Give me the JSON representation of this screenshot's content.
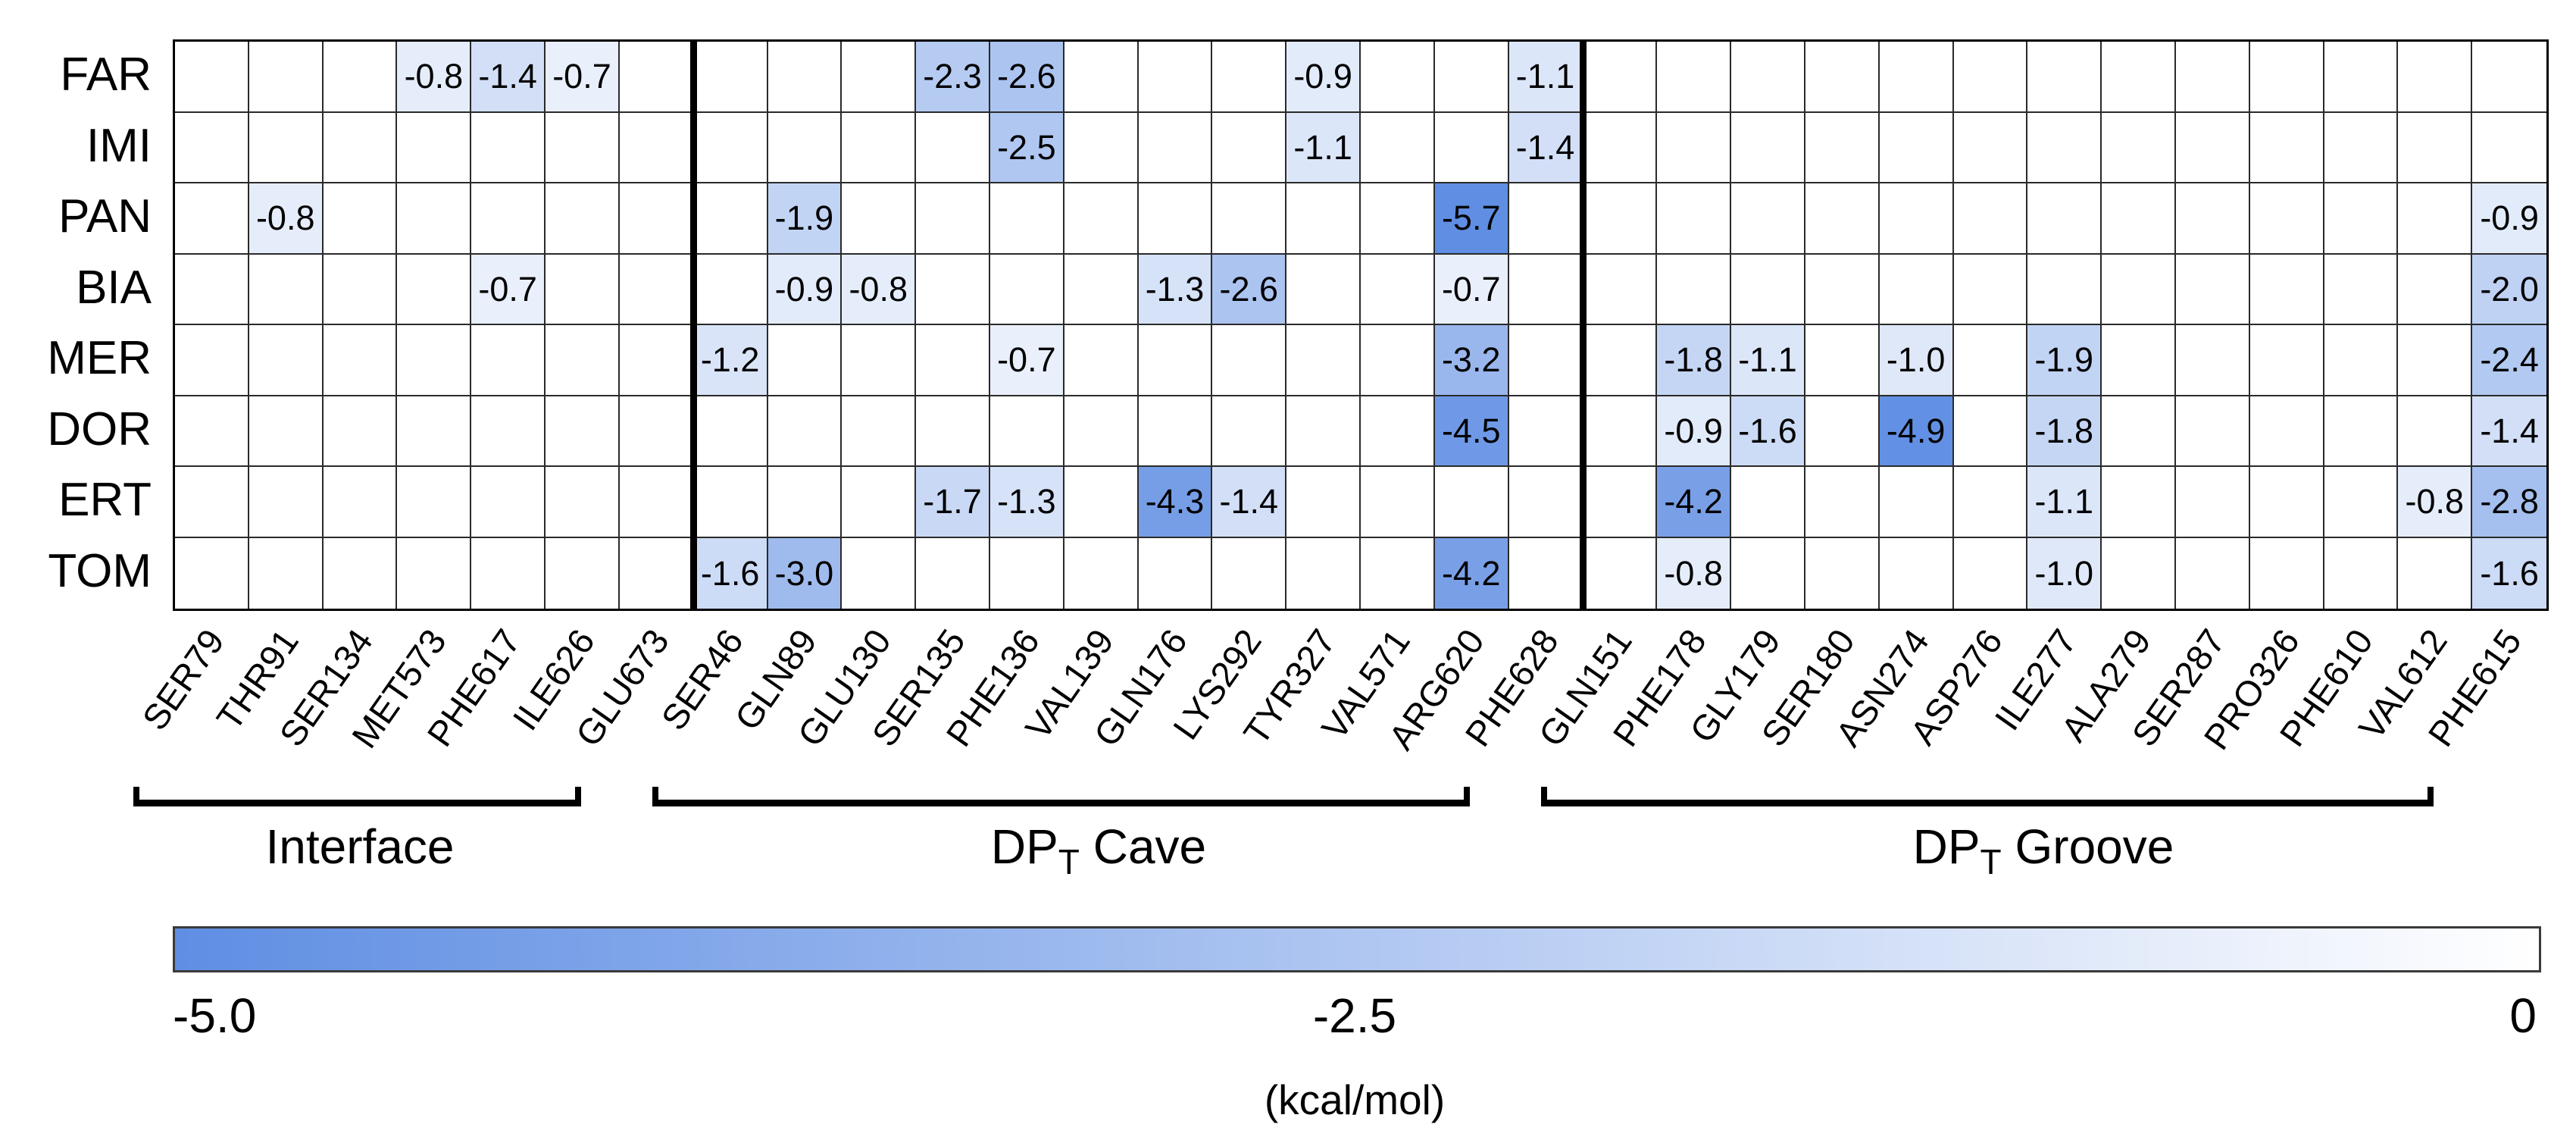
{
  "chart_data": {
    "type": "heatmap",
    "title": "",
    "rows": [
      "FAR",
      "IMI",
      "PAN",
      "BIA",
      "MER",
      "DOR",
      "ERT",
      "TOM"
    ],
    "columns": [
      "SER79",
      "THR91",
      "SER134",
      "MET573",
      "PHE617",
      "ILE626",
      "GLU673",
      "SER46",
      "GLN89",
      "GLU130",
      "SER135",
      "PHE136",
      "VAL139",
      "GLN176",
      "LYS292",
      "TYR327",
      "VAL571",
      "ARG620",
      "PHE628",
      "GLN151",
      "PHE178",
      "GLY179",
      "SER180",
      "ASN274",
      "ASP276",
      "ILE277",
      "ALA279",
      "SER287",
      "PRO326",
      "PHE610",
      "VAL612",
      "PHE615"
    ],
    "groups": [
      {
        "prefix": "Interface",
        "sub": "",
        "suffix": "",
        "full_label": "Interface",
        "first_column": "SER79",
        "last_column": "GLU673",
        "column_count": 7
      },
      {
        "prefix": "DP",
        "sub": "T",
        "suffix": " Cave",
        "full_label": "DPT Cave",
        "first_column": "SER46",
        "last_column": "PHE628",
        "column_count": 12
      },
      {
        "prefix": "DP",
        "sub": "T",
        "suffix": " Groove",
        "full_label": "DPT Groove",
        "first_column": "GLN151",
        "last_column": "PHE615",
        "column_count": 13
      }
    ],
    "values": [
      {
        "row": "FAR",
        "column": "MET573",
        "value": -0.8
      },
      {
        "row": "FAR",
        "column": "PHE617",
        "value": -1.4
      },
      {
        "row": "FAR",
        "column": "ILE626",
        "value": -0.7
      },
      {
        "row": "FAR",
        "column": "SER135",
        "value": -2.3
      },
      {
        "row": "FAR",
        "column": "PHE136",
        "value": -2.6
      },
      {
        "row": "FAR",
        "column": "TYR327",
        "value": -0.9
      },
      {
        "row": "FAR",
        "column": "PHE628",
        "value": -1.1
      },
      {
        "row": "IMI",
        "column": "PHE136",
        "value": -2.5
      },
      {
        "row": "IMI",
        "column": "TYR327",
        "value": -1.1
      },
      {
        "row": "IMI",
        "column": "PHE628",
        "value": -1.4
      },
      {
        "row": "PAN",
        "column": "THR91",
        "value": -0.8
      },
      {
        "row": "PAN",
        "column": "GLN89",
        "value": -1.9
      },
      {
        "row": "PAN",
        "column": "ARG620",
        "value": -5.7
      },
      {
        "row": "PAN",
        "column": "PHE615",
        "value": -0.9
      },
      {
        "row": "BIA",
        "column": "PHE617",
        "value": -0.7
      },
      {
        "row": "BIA",
        "column": "GLN89",
        "value": -0.9
      },
      {
        "row": "BIA",
        "column": "GLU130",
        "value": -0.8
      },
      {
        "row": "BIA",
        "column": "GLN176",
        "value": -1.3
      },
      {
        "row": "BIA",
        "column": "LYS292",
        "value": -2.6
      },
      {
        "row": "BIA",
        "column": "ARG620",
        "value": -0.7
      },
      {
        "row": "BIA",
        "column": "PHE615",
        "value": -2.0
      },
      {
        "row": "MER",
        "column": "SER46",
        "value": -1.2
      },
      {
        "row": "MER",
        "column": "PHE136",
        "value": -0.7
      },
      {
        "row": "MER",
        "column": "ARG620",
        "value": -3.2
      },
      {
        "row": "MER",
        "column": "PHE178",
        "value": -1.8
      },
      {
        "row": "MER",
        "column": "GLY179",
        "value": -1.1
      },
      {
        "row": "MER",
        "column": "ASN274",
        "value": -1.0
      },
      {
        "row": "MER",
        "column": "ILE277",
        "value": -1.9
      },
      {
        "row": "MER",
        "column": "PHE615",
        "value": -2.4
      },
      {
        "row": "DOR",
        "column": "ARG620",
        "value": -4.5
      },
      {
        "row": "DOR",
        "column": "PHE178",
        "value": -0.9
      },
      {
        "row": "DOR",
        "column": "GLY179",
        "value": -1.6
      },
      {
        "row": "DOR",
        "column": "ASN274",
        "value": -4.9
      },
      {
        "row": "DOR",
        "column": "ILE277",
        "value": -1.8
      },
      {
        "row": "DOR",
        "column": "PHE615",
        "value": -1.4
      },
      {
        "row": "ERT",
        "column": "SER135",
        "value": -1.7
      },
      {
        "row": "ERT",
        "column": "PHE136",
        "value": -1.3
      },
      {
        "row": "ERT",
        "column": "GLN176",
        "value": -4.3
      },
      {
        "row": "ERT",
        "column": "LYS292",
        "value": -1.4
      },
      {
        "row": "ERT",
        "column": "PHE178",
        "value": -4.2
      },
      {
        "row": "ERT",
        "column": "ILE277",
        "value": -1.1
      },
      {
        "row": "ERT",
        "column": "VAL612",
        "value": -0.8
      },
      {
        "row": "ERT",
        "column": "PHE615",
        "value": -2.8
      },
      {
        "row": "TOM",
        "column": "SER46",
        "value": -1.6
      },
      {
        "row": "TOM",
        "column": "GLN89",
        "value": -3.0
      },
      {
        "row": "TOM",
        "column": "ARG620",
        "value": -4.2
      },
      {
        "row": "TOM",
        "column": "PHE178",
        "value": -0.8
      },
      {
        "row": "TOM",
        "column": "ILE277",
        "value": -1.0
      },
      {
        "row": "TOM",
        "column": "PHE615",
        "value": -1.6
      }
    ],
    "scale": {
      "vmin": -5.0,
      "vmax": 0,
      "vmin_color": "#5f8ee3",
      "vmax_color": "#ffffff",
      "tick_label_min": "-5.0",
      "tick_label_mid": "-2.5",
      "tick_label_max": "0",
      "unit": "(kcal/mol)"
    },
    "layout_hints": {
      "legend_position": "bottom",
      "grid": true,
      "empty_cell_color": "#ffffff",
      "thick_separators_after_columns": [
        "GLU673",
        "PHE628"
      ]
    }
  }
}
